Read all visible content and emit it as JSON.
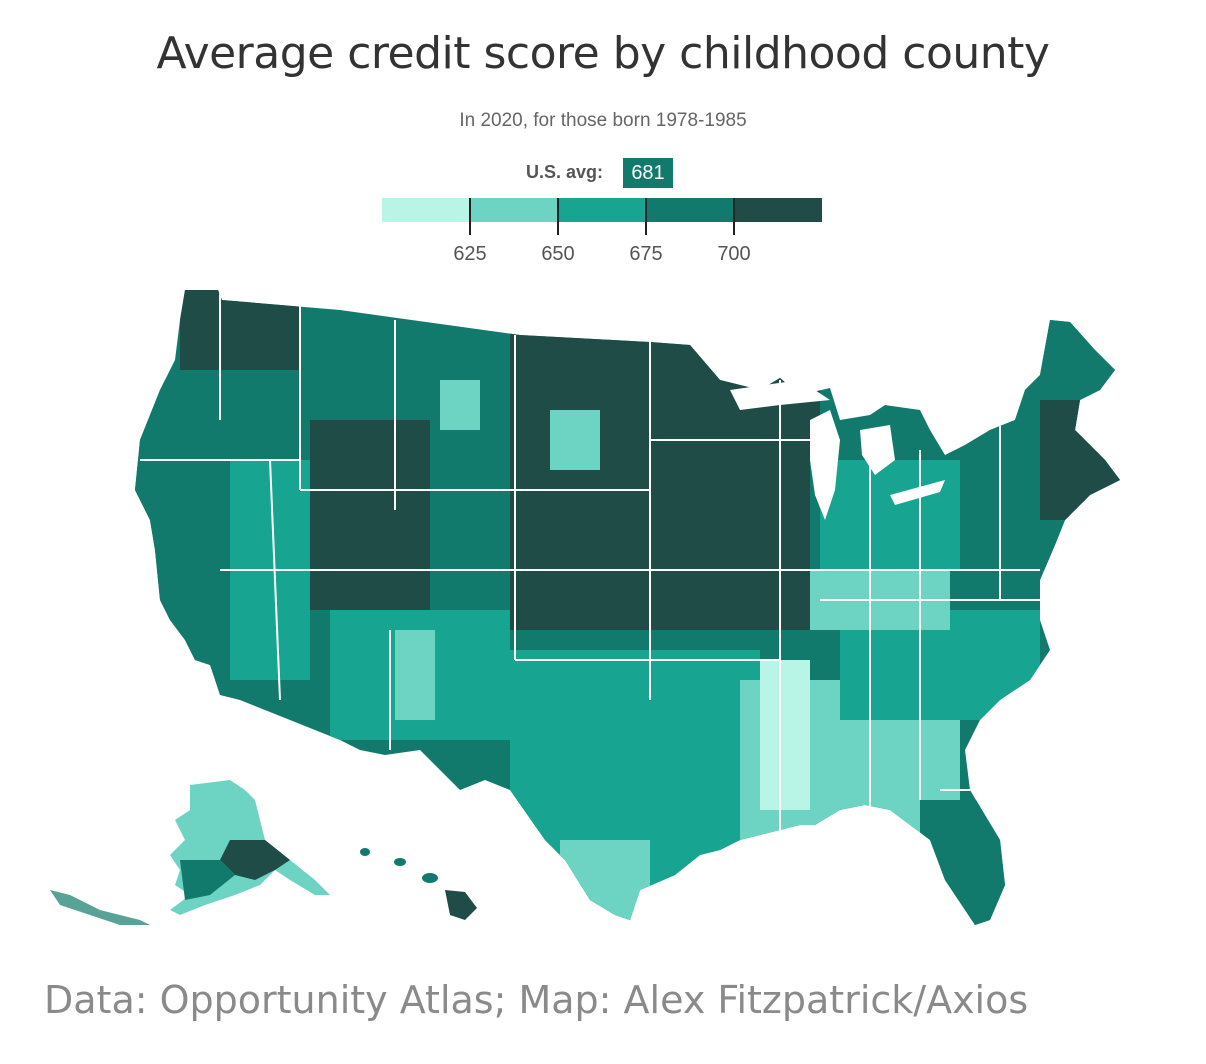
{
  "title": "Average credit score by childhood county",
  "subtitle": "In 2020, for those born 1978-1985",
  "us_avg": {
    "label": "U.S. avg:",
    "value": "681"
  },
  "legend": {
    "colors": [
      "#b9f5e6",
      "#6dd3c3",
      "#17a592",
      "#117a6c",
      "#1f4c47"
    ],
    "tick_labels": [
      "625",
      "650",
      "675",
      "700"
    ],
    "thresholds": [
      625,
      650,
      675,
      700
    ]
  },
  "map": {
    "regions": [
      "contiguous-us",
      "alaska",
      "hawaii"
    ],
    "outline_color": "#ffffff"
  },
  "source": "Data: Opportunity Atlas; Map: Alex Fitzpatrick/Axios"
}
